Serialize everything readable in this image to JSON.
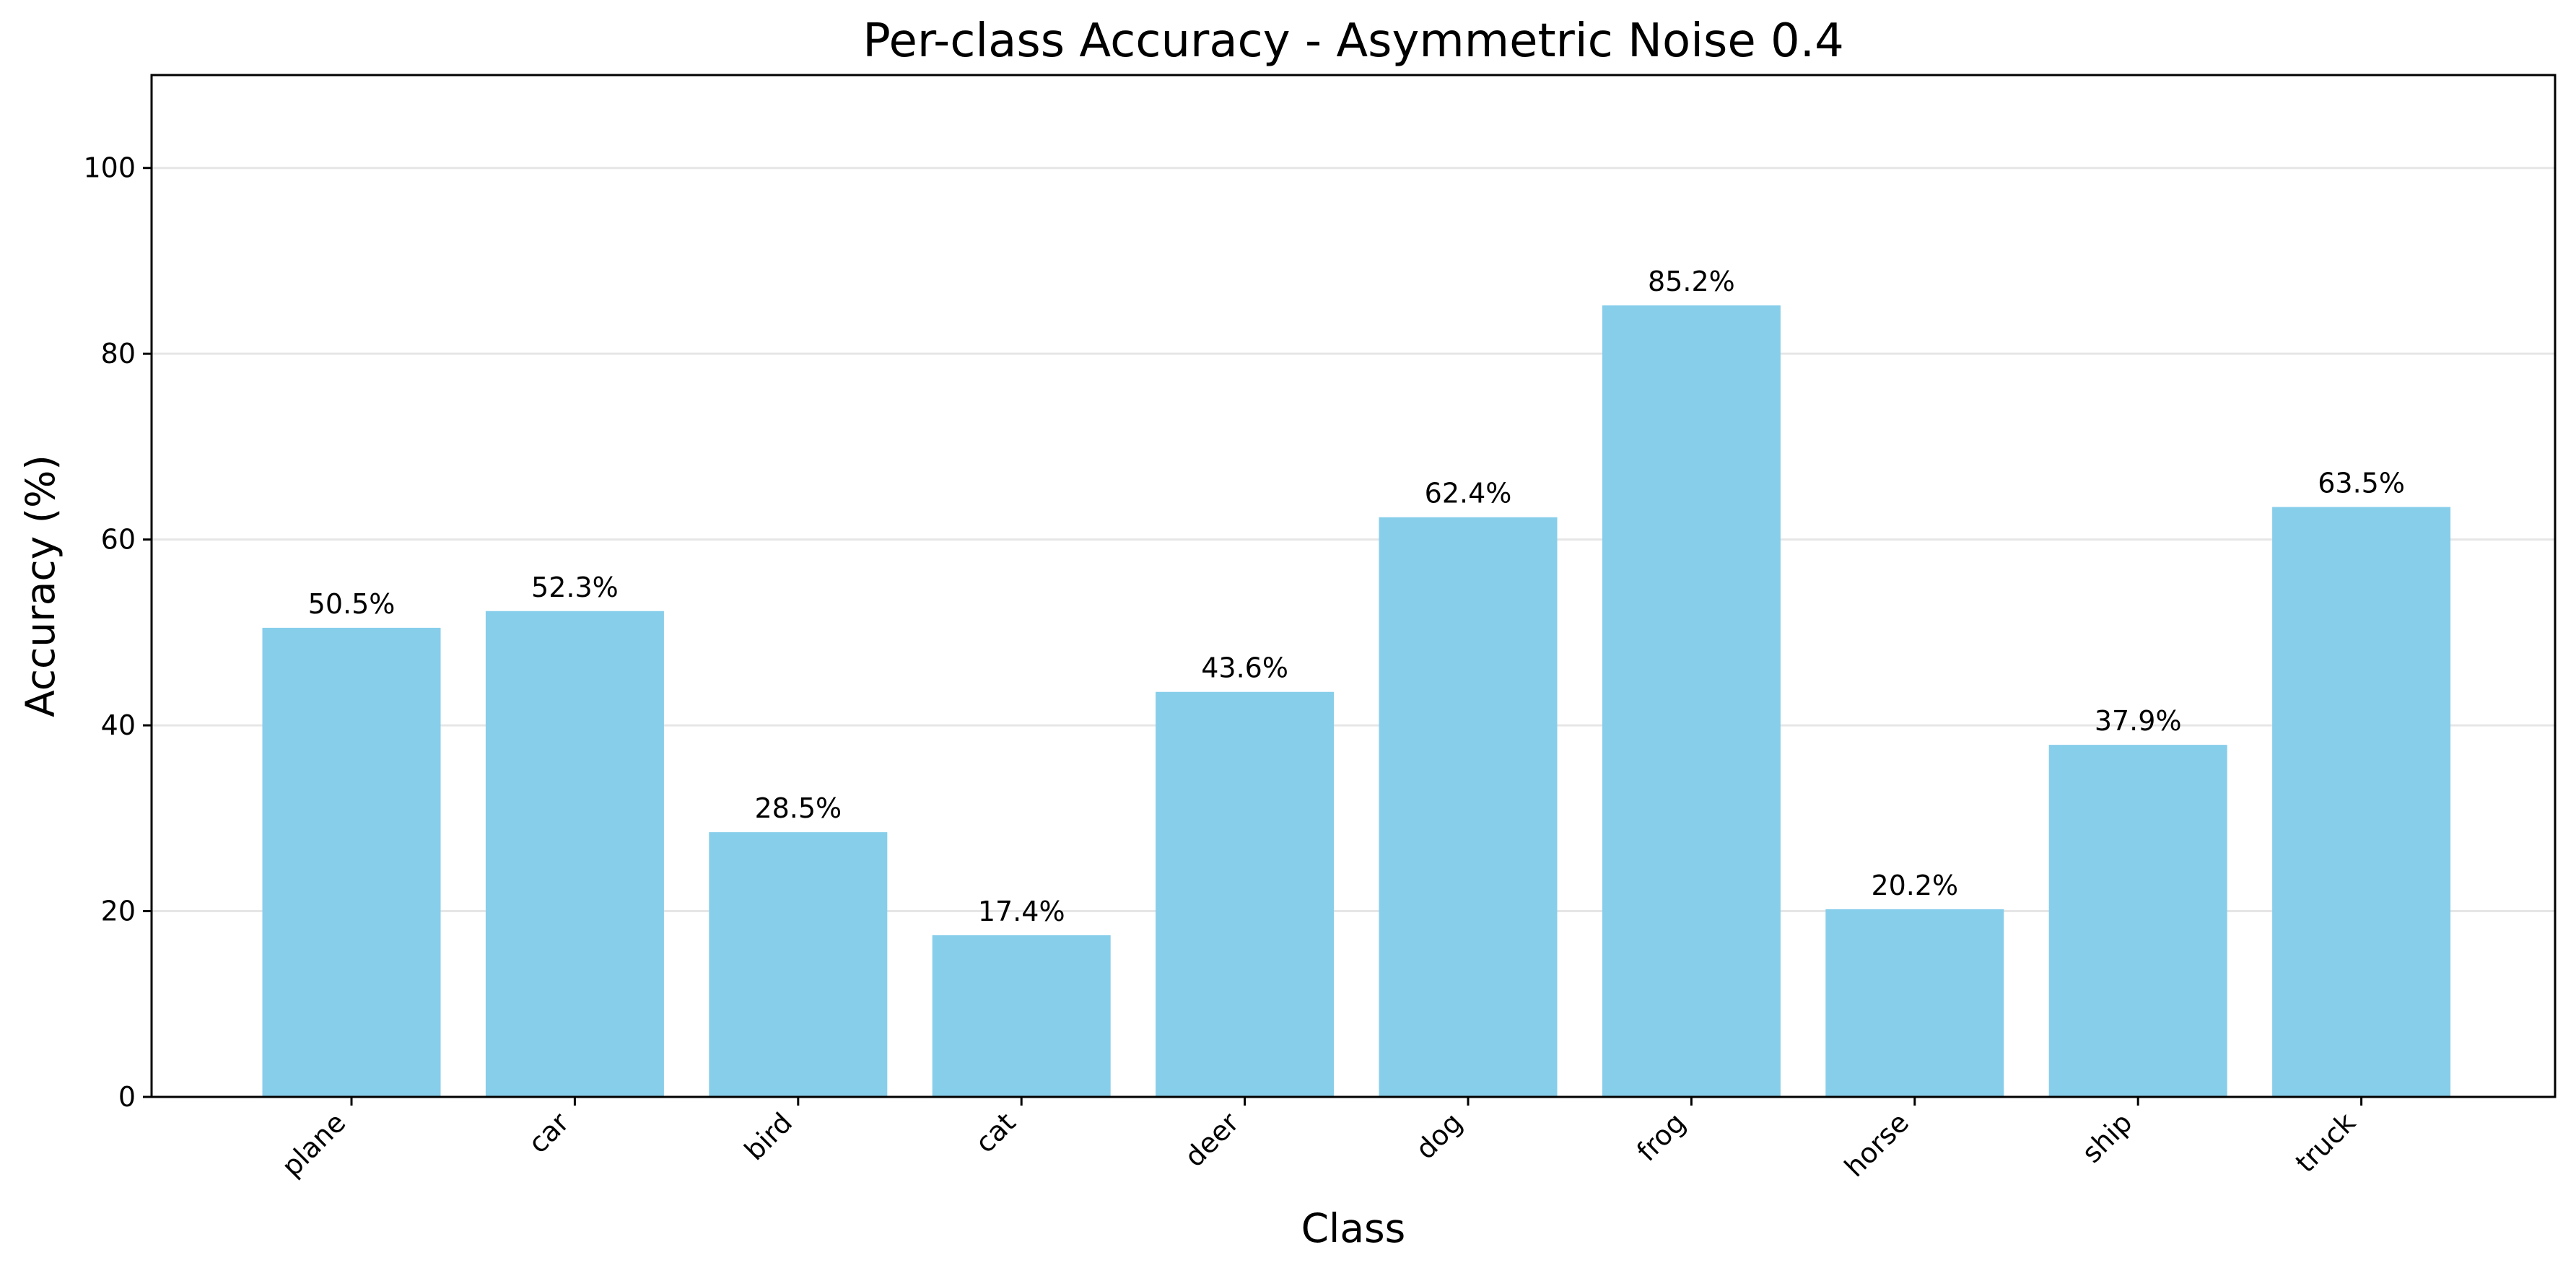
{
  "chart_data": {
    "type": "bar",
    "title": "Per-class Accuracy - Asymmetric Noise 0.4",
    "xlabel": "Class",
    "ylabel": "Accuracy (%)",
    "categories": [
      "plane",
      "car",
      "bird",
      "cat",
      "deer",
      "dog",
      "frog",
      "horse",
      "ship",
      "truck"
    ],
    "values": [
      50.5,
      52.3,
      28.5,
      17.4,
      43.6,
      62.4,
      85.2,
      20.2,
      37.9,
      63.5
    ],
    "data_labels": [
      "50.5%",
      "52.3%",
      "28.5%",
      "17.4%",
      "43.6%",
      "62.4%",
      "85.2%",
      "20.2%",
      "37.9%",
      "63.5%"
    ],
    "ylim": [
      0,
      110
    ],
    "yticks": [
      0,
      20,
      40,
      60,
      80,
      100
    ],
    "grid": "y",
    "bar_color": "#87ceeb",
    "grid_color": "#e6e6e6"
  }
}
